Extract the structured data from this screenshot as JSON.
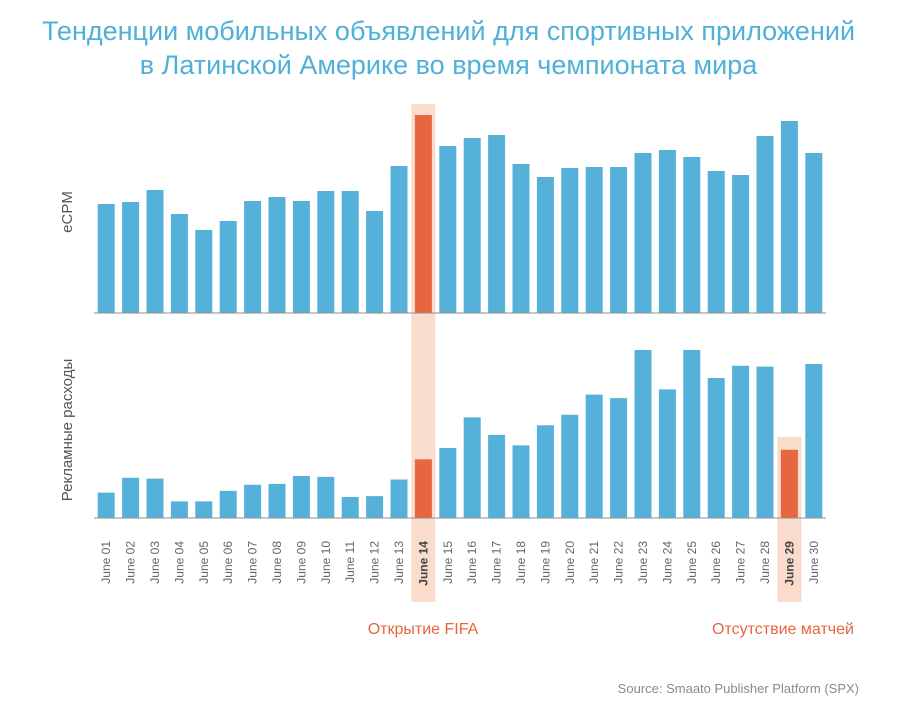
{
  "chart_data": {
    "type": "bar",
    "title_lines": [
      "Тенденции мобильных объявлений для спортивных приложений",
      "в Латинской Америке во время чемпионата мира"
    ],
    "categories": [
      "June 01",
      "June 02",
      "June 03",
      "June 04",
      "June 05",
      "June 06",
      "June 07",
      "June 08",
      "June 09",
      "June 10",
      "June 11",
      "June 12",
      "June 13",
      "June 14",
      "June 15",
      "June 16",
      "June 17",
      "June 18",
      "June 19",
      "June 20",
      "June 21",
      "June 22",
      "June 23",
      "June 24",
      "June 25",
      "June 26",
      "June 27",
      "June 28",
      "June 29",
      "June 30"
    ],
    "series": [
      {
        "name": "eCPM",
        "values": [
          54.5,
          55.5,
          61.5,
          49.5,
          41.5,
          46.0,
          56.0,
          58.0,
          56.0,
          61.0,
          61.0,
          51.0,
          73.5,
          99.0,
          83.5,
          87.5,
          89.0,
          74.5,
          68.0,
          72.5,
          73.0,
          73.0,
          80.0,
          81.5,
          78.0,
          71.0,
          69.0,
          88.5,
          96.0,
          80.0
        ]
      },
      {
        "name": "Рекламные расходы",
        "values": [
          14.5,
          23.0,
          22.5,
          9.5,
          9.5,
          15.5,
          19.0,
          19.5,
          24.0,
          23.5,
          12.0,
          12.5,
          22.0,
          33.5,
          40.0,
          57.5,
          47.5,
          41.5,
          53.0,
          59.0,
          70.5,
          68.5,
          96.0,
          73.5,
          96.0,
          80.0,
          87.0,
          86.5,
          39.0,
          88.0
        ]
      }
    ],
    "ylim": [
      0,
      100
    ],
    "highlight": [
      "June 14",
      "June 29"
    ],
    "annotations": [
      {
        "category": "June 14",
        "text": "Открытие FIFA"
      },
      {
        "category": "June 29",
        "text": "Отсутствие матчей"
      }
    ],
    "source": "Source: Smaato Publisher Platform (SPX)",
    "colors": {
      "bar": "#56b1da",
      "highlight": "#e8663f",
      "band": "#f9dccb",
      "axis": "#8f8f8f",
      "title": "#4fb0d8"
    }
  }
}
